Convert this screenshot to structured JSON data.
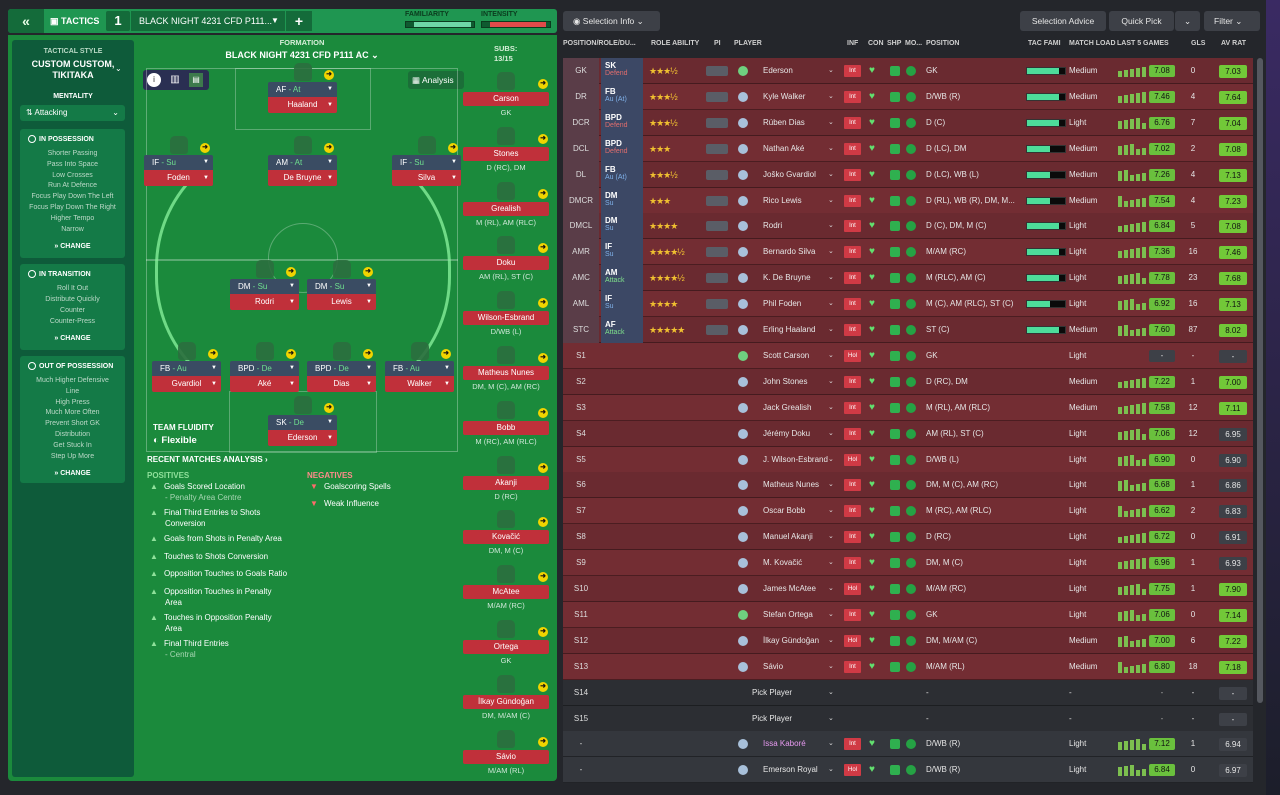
{
  "topbar": {
    "back": "«",
    "tactics": "TACTICS",
    "slot": "1",
    "tactic_name": "BLACK NIGHT 4231 CFD P111...",
    "plus": "+",
    "familiarity": "FAMILIARITY",
    "intensity": "INTENSITY",
    "familiarity_value": 0.92,
    "intensity_value": 0.9
  },
  "style": {
    "header": "TACTICAL STYLE",
    "name1": "CUSTOM CUSTOM,",
    "name2": "TIKITAKA",
    "mentality_label": "MENTALITY",
    "mentality": "Attacking",
    "in_possession": "IN POSSESSION",
    "in_possession_opts": [
      "Shorter Passing",
      "Pass Into Space",
      "Low Crosses",
      "Run At Defence",
      "Focus Play Down The Left",
      "Focus Play Down The Right",
      "Higher Tempo",
      "Narrow"
    ],
    "in_transition": "IN TRANSITION",
    "in_transition_opts": [
      "Roll It Out",
      "Distribute Quickly",
      "Counter",
      "Counter-Press"
    ],
    "out_possession": "OUT OF POSSESSION",
    "out_possession_opts": [
      "Much Higher Defensive",
      "Line",
      "High Press",
      "Much More Often",
      "Prevent Short GK",
      "Distribution",
      "Get Stuck In",
      "Step Up More"
    ],
    "change": "CHANGE"
  },
  "formation": {
    "label": "FORMATION",
    "name": "BLACK NIGHT 4231 CFD P111 AC",
    "analysis": "Analysis",
    "fluidity_label": "TEAM FLUIDITY",
    "fluidity": "Flexible"
  },
  "lineup": [
    {
      "role": "AF",
      "duty": "At",
      "name": "Haaland"
    },
    {
      "role": "IF",
      "duty": "Su",
      "name": "Foden"
    },
    {
      "role": "AM",
      "duty": "At",
      "name": "De Bruyne"
    },
    {
      "role": "IF",
      "duty": "Su",
      "name": "Silva"
    },
    {
      "role": "DM",
      "duty": "Su",
      "name": "Rodri"
    },
    {
      "role": "DM",
      "duty": "Su",
      "name": "Lewis"
    },
    {
      "role": "FB",
      "duty": "Au",
      "name": "Gvardiol"
    },
    {
      "role": "BPD",
      "duty": "De",
      "name": "Aké"
    },
    {
      "role": "BPD",
      "duty": "De",
      "name": "Dias"
    },
    {
      "role": "FB",
      "duty": "Au",
      "name": "Walker"
    },
    {
      "role": "SK",
      "duty": "De",
      "name": "Ederson"
    }
  ],
  "subs": {
    "label": "SUBS:",
    "count": "13/15",
    "list": [
      {
        "name": "Carson",
        "pos": "GK"
      },
      {
        "name": "Stones",
        "pos": "D (RC), DM"
      },
      {
        "name": "Grealish",
        "pos": "M (RL), AM (RLC)"
      },
      {
        "name": "Doku",
        "pos": "AM (RL), ST (C)"
      },
      {
        "name": "Wilson-Esbrand",
        "pos": "D/WB (L)"
      },
      {
        "name": "Matheus Nunes",
        "pos": "DM, M (C), AM (RC)"
      },
      {
        "name": "Bobb",
        "pos": "M (RC), AM (RLC)"
      },
      {
        "name": "Akanji",
        "pos": "D (RC)"
      },
      {
        "name": "Kovačić",
        "pos": "DM, M (C)"
      },
      {
        "name": "McAtee",
        "pos": "M/AM (RC)"
      },
      {
        "name": "Ortega",
        "pos": "GK"
      },
      {
        "name": "İlkay Gündoğan",
        "pos": "DM, M/AM (C)"
      },
      {
        "name": "Sávio",
        "pos": "M/AM (RL)"
      }
    ]
  },
  "analysis": {
    "header": "RECENT MATCHES ANALYSIS ›",
    "positives": "POSITIVES",
    "negatives": "NEGATIVES",
    "pos_items": [
      [
        "Goals Scored Location",
        "- Penalty Area Centre"
      ],
      [
        "Final Third Entries to Shots",
        "Conversion"
      ],
      [
        "Goals from Shots in Penalty Area",
        ""
      ],
      [
        "Touches to Shots Conversion",
        ""
      ],
      [
        "Opposition Touches to Goals Ratio",
        ""
      ],
      [
        "Opposition Touches in Penalty",
        "Area"
      ],
      [
        "Touches in Opposition Penalty",
        "Area"
      ],
      [
        "Final Third Entries",
        "- Central"
      ]
    ],
    "neg_items": [
      "Goalscoring Spells",
      "Weak Influence"
    ]
  },
  "toolbar": {
    "selection_info": "Selection Info",
    "selection_advice": "Selection Advice",
    "quick_pick": "Quick Pick",
    "filter": "Filter"
  },
  "columns": [
    "POSITION/ROLE/DU...",
    "ROLE ABILITY",
    "PI",
    "PLAYER",
    "INF",
    "CON",
    "SHP",
    "MO...",
    "POSITION",
    "TAC FAMI",
    "MATCH LOAD",
    "LAST 5 GAMES",
    "GLS",
    "AV RAT"
  ],
  "players": [
    {
      "slot": "GK",
      "role": "SK",
      "duty": "Defend",
      "stars": "★★★½",
      "name": "Ederson",
      "inf": "Int",
      "pos": "GK",
      "tf": 0.85,
      "load": "Medium",
      "rat": "7.08",
      "gls": "0",
      "av": "7.03",
      "gk": true
    },
    {
      "slot": "DR",
      "role": "FB",
      "duty": "Au (At)",
      "stars": "★★★½",
      "name": "Kyle Walker",
      "inf": "Int",
      "pos": "D/WB (R)",
      "tf": 0.85,
      "load": "Medium",
      "rat": "7.46",
      "gls": "4",
      "av": "7.64"
    },
    {
      "slot": "DCR",
      "role": "BPD",
      "duty": "Defend",
      "stars": "★★★½",
      "name": "Rúben Dias",
      "inf": "Int",
      "pos": "D (C)",
      "tf": 0.85,
      "load": "Light",
      "rat": "6.76",
      "gls": "7",
      "av": "7.04"
    },
    {
      "slot": "DCL",
      "role": "BPD",
      "duty": "Defend",
      "stars": "★★★",
      "name": "Nathan Aké",
      "inf": "Int",
      "pos": "D (LC), DM",
      "tf": 0.6,
      "load": "Medium",
      "rat": "7.02",
      "gls": "2",
      "av": "7.08"
    },
    {
      "slot": "DL",
      "role": "FB",
      "duty": "Au (At)",
      "stars": "★★★½",
      "name": "Joško Gvardiol",
      "inf": "Int",
      "pos": "D (LC), WB (L)",
      "tf": 0.6,
      "load": "Medium",
      "rat": "7.26",
      "gls": "4",
      "av": "7.13"
    },
    {
      "slot": "DMCR",
      "role": "DM",
      "duty": "Su",
      "stars": "★★★",
      "name": "Rico Lewis",
      "inf": "Int",
      "pos": "D (RL), WB (R), DM, M...",
      "tf": 0.6,
      "load": "Medium",
      "rat": "7.54",
      "gls": "4",
      "av": "7.23"
    },
    {
      "slot": "DMCL",
      "role": "DM",
      "duty": "Su",
      "stars": "★★★★",
      "name": "Rodri",
      "inf": "Int",
      "pos": "D (C), DM, M (C)",
      "tf": 0.85,
      "load": "Light",
      "rat": "6.84",
      "gls": "5",
      "av": "7.08"
    },
    {
      "slot": "AMR",
      "role": "IF",
      "duty": "Su",
      "stars": "★★★★½",
      "name": "Bernardo Silva",
      "inf": "Int",
      "pos": "M/AM (RC)",
      "tf": 0.85,
      "load": "Light",
      "rat": "7.36",
      "gls": "16",
      "av": "7.46"
    },
    {
      "slot": "AMC",
      "role": "AM",
      "duty": "Attack",
      "stars": "★★★★½",
      "name": "K. De Bruyne",
      "inf": "Int",
      "pos": "M (RLC), AM (C)",
      "tf": 0.85,
      "load": "Light",
      "rat": "7.78",
      "gls": "23",
      "av": "7.68"
    },
    {
      "slot": "AML",
      "role": "IF",
      "duty": "Su",
      "stars": "★★★★",
      "name": "Phil Foden",
      "inf": "Int",
      "pos": "M (C), AM (RLC), ST (C)",
      "tf": 0.6,
      "load": "Light",
      "rat": "6.92",
      "gls": "16",
      "av": "7.13"
    },
    {
      "slot": "STC",
      "role": "AF",
      "duty": "Attack",
      "stars": "★★★★★",
      "name": "Erling Haaland",
      "inf": "Int",
      "pos": "ST (C)",
      "tf": 0.85,
      "load": "Medium",
      "rat": "7.60",
      "gls": "87",
      "av": "8.02"
    },
    {
      "slot": "S1",
      "name": "Scott Carson",
      "inf": "Hol",
      "pos": "GK",
      "load": "Light",
      "rat": "-",
      "gls": "-",
      "av": "-",
      "gk": true,
      "sub": true
    },
    {
      "slot": "S2",
      "name": "John Stones",
      "inf": "Int",
      "pos": "D (RC), DM",
      "load": "Medium",
      "rat": "7.22",
      "gls": "1",
      "av": "7.00",
      "sub": true
    },
    {
      "slot": "S3",
      "name": "Jack Grealish",
      "inf": "Int",
      "pos": "M (RL), AM (RLC)",
      "load": "Medium",
      "rat": "7.58",
      "gls": "12",
      "av": "7.11",
      "sub": true
    },
    {
      "slot": "S4",
      "name": "Jérémy Doku",
      "inf": "Int",
      "pos": "AM (RL), ST (C)",
      "load": "Light",
      "rat": "7.06",
      "gls": "12",
      "av": "6.95",
      "sub": true
    },
    {
      "slot": "S5",
      "name": "J. Wilson-Esbrand",
      "inf": "Hol",
      "pos": "D/WB (L)",
      "load": "Light",
      "rat": "6.90",
      "gls": "0",
      "av": "6.90",
      "sub": true
    },
    {
      "slot": "S6",
      "name": "Matheus Nunes",
      "inf": "Int",
      "pos": "DM, M (C), AM (RC)",
      "load": "Light",
      "rat": "6.68",
      "gls": "1",
      "av": "6.86",
      "sub": true
    },
    {
      "slot": "S7",
      "name": "Oscar Bobb",
      "inf": "Int",
      "pos": "M (RC), AM (RLC)",
      "load": "Light",
      "rat": "6.62",
      "gls": "2",
      "av": "6.83",
      "sub": true
    },
    {
      "slot": "S8",
      "name": "Manuel Akanji",
      "inf": "Int",
      "pos": "D (RC)",
      "load": "Light",
      "rat": "6.72",
      "gls": "0",
      "av": "6.91",
      "sub": true
    },
    {
      "slot": "S9",
      "name": "M. Kovačić",
      "inf": "Int",
      "pos": "DM, M (C)",
      "load": "Light",
      "rat": "6.96",
      "gls": "1",
      "av": "6.93",
      "sub": true
    },
    {
      "slot": "S10",
      "name": "James McAtee",
      "inf": "Hol",
      "pos": "M/AM (RC)",
      "load": "Light",
      "rat": "7.75",
      "gls": "1",
      "av": "7.90",
      "sub": true
    },
    {
      "slot": "S11",
      "name": "Stefan Ortega",
      "inf": "Int",
      "pos": "GK",
      "load": "Light",
      "rat": "7.06",
      "gls": "0",
      "av": "7.14",
      "gk": true,
      "sub": true
    },
    {
      "slot": "S12",
      "name": "İlkay Gündoğan",
      "inf": "Hol",
      "pos": "DM, M/AM (C)",
      "load": "Medium",
      "rat": "7.00",
      "gls": "6",
      "av": "7.22",
      "sub": true
    },
    {
      "slot": "S13",
      "name": "Sávio",
      "inf": "Int",
      "pos": "M/AM (RL)",
      "load": "Medium",
      "rat": "6.80",
      "gls": "18",
      "av": "7.18",
      "sub": true
    },
    {
      "slot": "S14",
      "name": "Pick Player",
      "pos": "-",
      "load": "-",
      "rat": "-",
      "gls": "-",
      "av": "-",
      "empty": true
    },
    {
      "slot": "S15",
      "name": "Pick Player",
      "pos": "-",
      "load": "-",
      "rat": "-",
      "gls": "-",
      "av": "-",
      "empty": true
    },
    {
      "slot": "-",
      "name": "Issa Kaboré",
      "inf": "Int",
      "pos": "D/WB (R)",
      "load": "Light",
      "rat": "7.12",
      "gls": "1",
      "av": "6.94",
      "res": true
    },
    {
      "slot": "-",
      "name": "Emerson Royal",
      "inf": "Hol",
      "pos": "D/WB (R)",
      "load": "Light",
      "rat": "6.84",
      "gls": "0",
      "av": "6.97",
      "res": true
    }
  ]
}
